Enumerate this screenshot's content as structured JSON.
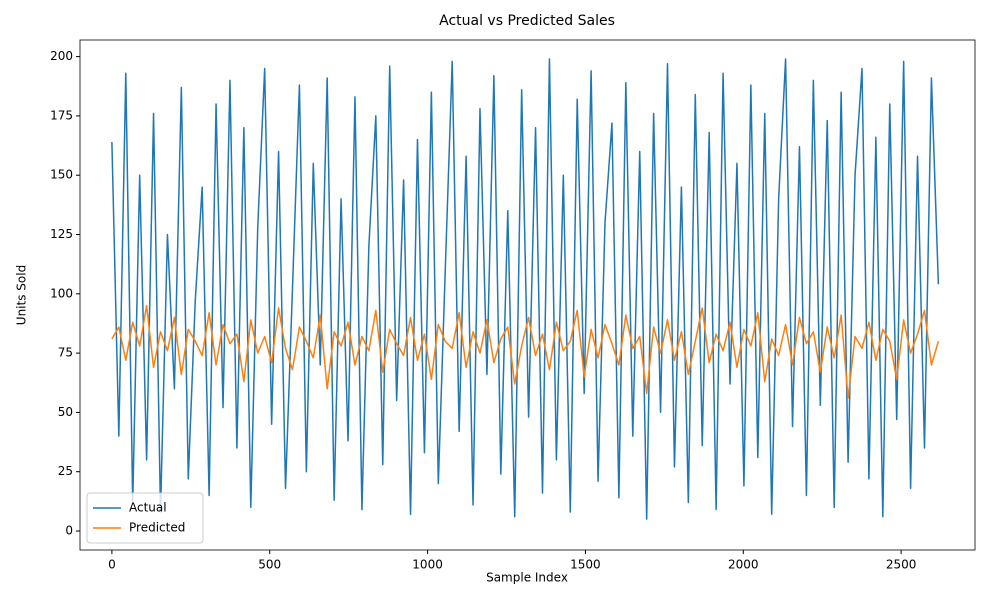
{
  "chart_data": {
    "type": "line",
    "title": "Actual vs Predicted Sales",
    "x_label": "Sample Index",
    "y_label": "Units Sold",
    "x": [
      0,
      22,
      44,
      66,
      88,
      110,
      132,
      154,
      176,
      198,
      220,
      242,
      264,
      286,
      308,
      330,
      352,
      374,
      396,
      418,
      440,
      462,
      484,
      506,
      528,
      550,
      572,
      594,
      616,
      638,
      660,
      682,
      704,
      726,
      748,
      770,
      792,
      814,
      836,
      858,
      880,
      902,
      924,
      946,
      968,
      990,
      1012,
      1034,
      1056,
      1078,
      1100,
      1122,
      1144,
      1166,
      1188,
      1210,
      1232,
      1254,
      1276,
      1298,
      1320,
      1342,
      1364,
      1386,
      1408,
      1430,
      1452,
      1474,
      1496,
      1518,
      1540,
      1562,
      1584,
      1606,
      1628,
      1650,
      1672,
      1694,
      1716,
      1738,
      1760,
      1782,
      1804,
      1826,
      1848,
      1870,
      1892,
      1914,
      1936,
      1958,
      1980,
      2002,
      2024,
      2046,
      2068,
      2090,
      2112,
      2134,
      2156,
      2178,
      2200,
      2222,
      2244,
      2266,
      2288,
      2310,
      2332,
      2354,
      2376,
      2398,
      2420,
      2442,
      2464,
      2486,
      2508,
      2530,
      2552,
      2574,
      2596,
      2618
    ],
    "series": [
      {
        "name": "Actual",
        "color": "#1f77b4",
        "values": [
          164,
          40,
          193,
          12,
          150,
          30,
          176,
          8,
          125,
          60,
          187,
          22,
          97,
          145,
          15,
          180,
          52,
          190,
          35,
          170,
          10,
          128,
          195,
          45,
          160,
          18,
          102,
          188,
          25,
          155,
          70,
          191,
          13,
          140,
          38,
          183,
          9,
          120,
          175,
          28,
          196,
          55,
          148,
          7,
          165,
          33,
          185,
          20,
          110,
          198,
          42,
          158,
          11,
          178,
          66,
          192,
          24,
          135,
          6,
          186,
          48,
          170,
          16,
          199,
          30,
          150,
          8,
          182,
          58,
          194,
          21,
          130,
          172,
          14,
          189,
          40,
          160,
          5,
          176,
          50,
          197,
          27,
          145,
          12,
          184,
          36,
          168,
          9,
          193,
          62,
          155,
          19,
          188,
          31,
          176,
          7,
          140,
          199,
          44,
          162,
          15,
          190,
          53,
          173,
          10,
          185,
          29,
          150,
          195,
          22,
          166,
          6,
          180,
          47,
          198,
          18,
          158,
          35,
          191,
          104
        ]
      },
      {
        "name": "Predicted",
        "color": "#ff7f0e",
        "values": [
          81,
          86,
          72,
          88,
          78,
          95,
          69,
          84,
          76,
          90,
          66,
          85,
          80,
          74,
          92,
          70,
          87,
          79,
          83,
          63,
          89,
          75,
          82,
          71,
          94,
          77,
          68,
          86,
          80,
          73,
          91,
          60,
          84,
          78,
          88,
          70,
          82,
          76,
          93,
          67,
          85,
          79,
          74,
          90,
          72,
          83,
          64,
          87,
          80,
          77,
          92,
          69,
          84,
          75,
          89,
          71,
          81,
          86,
          62,
          78,
          90,
          74,
          83,
          68,
          88,
          76,
          80,
          93,
          65,
          85,
          73,
          87,
          79,
          70,
          91,
          77,
          82,
          58,
          86,
          75,
          89,
          72,
          84,
          66,
          80,
          94,
          71,
          83,
          76,
          88,
          69,
          85,
          78,
          92,
          63,
          81,
          74,
          87,
          70,
          90,
          79,
          84,
          67,
          86,
          73,
          91,
          56,
          82,
          77,
          88,
          72,
          85,
          80,
          64,
          89,
          75,
          83,
          93,
          70,
          80
        ]
      }
    ],
    "xlim": [
      -101,
      2734
    ],
    "ylim": [
      -8,
      207
    ],
    "xticks": [
      0,
      500,
      1000,
      1500,
      2000,
      2500
    ],
    "yticks": [
      0,
      25,
      50,
      75,
      100,
      125,
      150,
      175,
      200
    ],
    "legend": "lower left"
  }
}
